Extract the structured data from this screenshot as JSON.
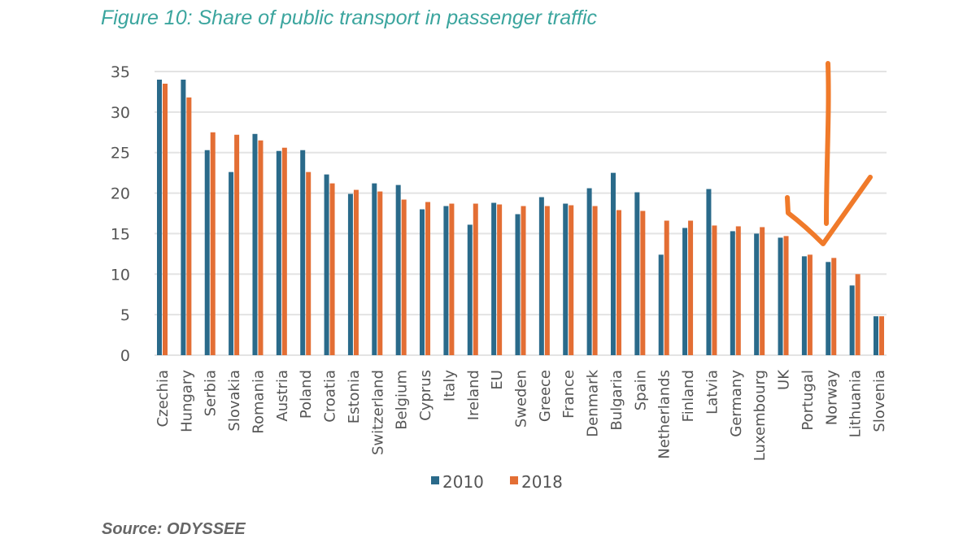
{
  "title": "Figure 10: Share of public transport in passenger traffic",
  "source": "Source: ODYSSEE",
  "chart_data": {
    "type": "bar",
    "title": "",
    "xlabel": "",
    "ylabel": "",
    "ylim": [
      0,
      35
    ],
    "yticks": [
      "0",
      "5",
      "10",
      "15",
      "20",
      "25",
      "30",
      "35"
    ],
    "grid": true,
    "legend_placement": "bottom",
    "categories": [
      "Czechia",
      "Hungary",
      "Serbia",
      "Slovakia",
      "Romania",
      "Austria",
      "Poland",
      "Croatia",
      "Estonia",
      "Switzerland",
      "Belgium",
      "Cyprus",
      "Italy",
      "Ireland",
      "EU",
      "Sweden",
      "Greece",
      "France",
      "Denmark",
      "Bulgaria",
      "Spain",
      "Netherlands",
      "Finland",
      "Latvia",
      "Germany",
      "Luxembourg",
      "UK",
      "Portugal",
      "Norway",
      "Lithuania",
      "Slovenia"
    ],
    "series": [
      {
        "name": "2010",
        "color": "#2a6a8a",
        "values": [
          34.0,
          34.0,
          25.3,
          22.6,
          27.3,
          25.2,
          25.3,
          22.3,
          19.9,
          21.2,
          21.0,
          18.0,
          18.4,
          16.1,
          18.8,
          17.4,
          19.5,
          18.7,
          20.6,
          22.5,
          20.1,
          12.4,
          15.7,
          20.5,
          15.3,
          15.0,
          14.5,
          12.2,
          11.5,
          8.6,
          4.8
        ]
      },
      {
        "name": "2018",
        "color": "#e36e34",
        "values": [
          33.5,
          31.8,
          27.5,
          27.2,
          26.5,
          25.6,
          22.6,
          21.2,
          20.4,
          20.2,
          19.2,
          18.9,
          18.7,
          18.7,
          18.6,
          18.4,
          18.4,
          18.5,
          18.4,
          17.9,
          17.8,
          16.6,
          16.6,
          16.0,
          15.9,
          15.8,
          14.7,
          12.4,
          12.0,
          10.0,
          4.8
        ]
      }
    ],
    "annotation": {
      "type": "hand-drawn arrow",
      "points_to": "Norway",
      "color": "#f07a2a"
    }
  }
}
